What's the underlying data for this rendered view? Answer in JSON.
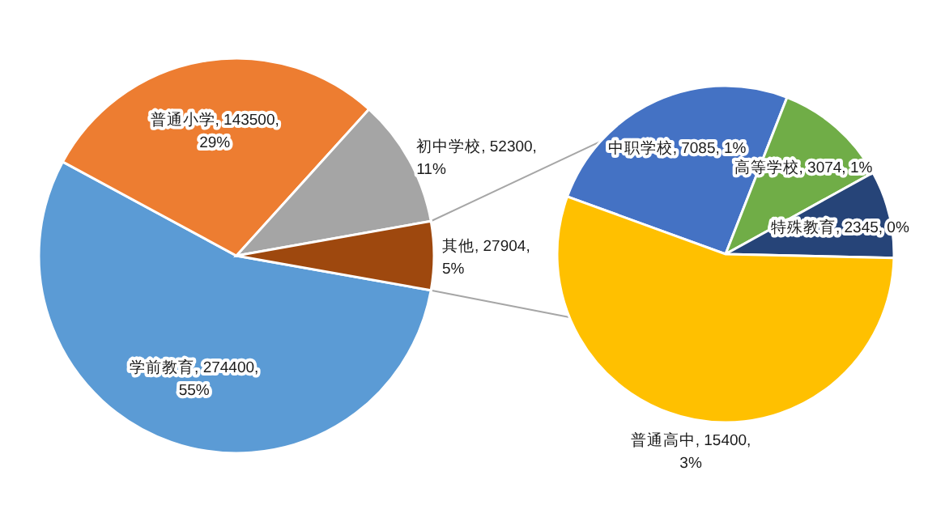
{
  "chart_data": [
    {
      "type": "pie",
      "categories": [
        "学前教育",
        "普通小学",
        "初中学校",
        "其他"
      ],
      "values": [
        274400,
        143500,
        52300,
        27904
      ],
      "colors": [
        "#5b9bd5",
        "#ed7d31",
        "#a5a5a5",
        "#9e480e"
      ],
      "value_labels": [
        "274400, 55%",
        "143500, 29%",
        "52300, 11%",
        "27904, 5%"
      ]
    },
    {
      "type": "pie",
      "categories": [
        "中职学校",
        "高等学校",
        "特殊教育",
        "普通高中"
      ],
      "values": [
        7085,
        3074,
        2345,
        15400
      ],
      "colors": [
        "#4472c4",
        "#70ad47",
        "#264478",
        "#ffc000"
      ],
      "value_labels": [
        "7085, 1%",
        "3074, 1%",
        "2345, 0%",
        "15400, 3%"
      ]
    }
  ]
}
